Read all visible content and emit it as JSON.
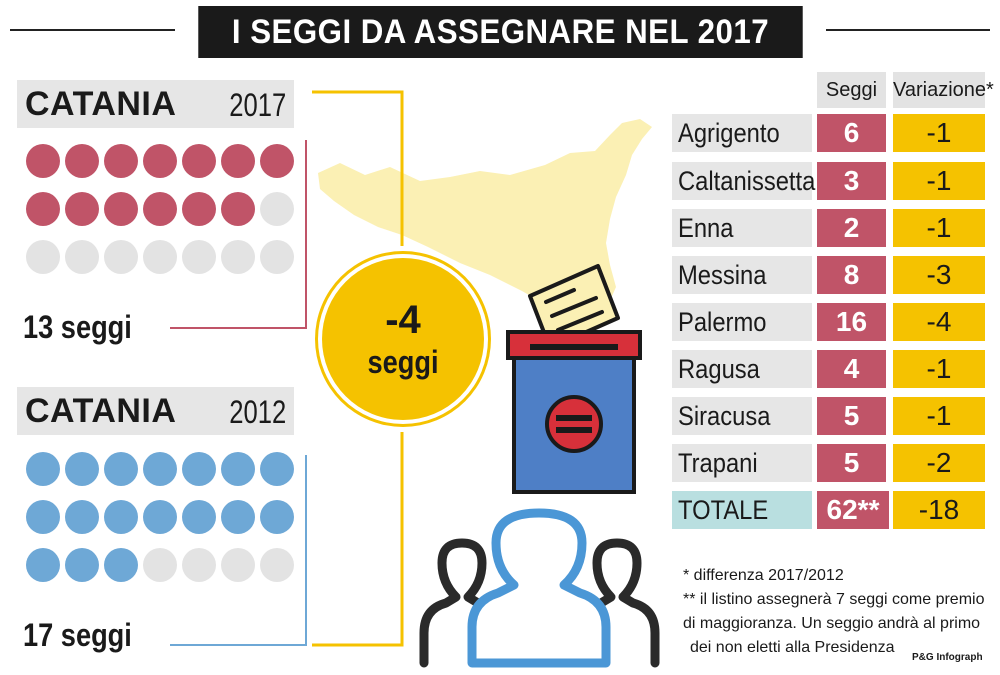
{
  "title": "I SEGGI DA ASSEGNARE NEL 2017",
  "catania_2017": {
    "name": "CATANIA",
    "year": "2017",
    "label": "13 seggi",
    "filled": 13,
    "total": 21
  },
  "catania_2012": {
    "name": "CATANIA",
    "year": "2012",
    "label": "17 seggi",
    "filled": 17,
    "total": 21
  },
  "difference": {
    "value": "-4",
    "label": "seggi"
  },
  "table": {
    "headers": {
      "seggi": "Seggi",
      "variazione": "Variazione*"
    },
    "rows": [
      {
        "name": "Agrigento",
        "seggi": "6",
        "variazione": "-1"
      },
      {
        "name": "Caltanissetta",
        "seggi": "3",
        "variazione": "-1"
      },
      {
        "name": "Enna",
        "seggi": "2",
        "variazione": "-1"
      },
      {
        "name": "Messina",
        "seggi": "8",
        "variazione": "-3"
      },
      {
        "name": "Palermo",
        "seggi": "16",
        "variazione": "-4"
      },
      {
        "name": "Ragusa",
        "seggi": "4",
        "variazione": "-1"
      },
      {
        "name": "Siracusa",
        "seggi": "5",
        "variazione": "-1"
      },
      {
        "name": "Trapani",
        "seggi": "5",
        "variazione": "-2"
      }
    ],
    "total": {
      "name": "TOTALE",
      "seggi": "62**",
      "variazione": "-18"
    }
  },
  "notes": {
    "note1": "* differenza 2017/2012",
    "note2": "** il listino assegnerà 7 seggi come premio",
    "note3": "di maggioranza. Un seggio andrà al primo",
    "note4": "dei non eletti alla Presidenza"
  },
  "credit": "P&G Infograph",
  "colors": {
    "red": "#c05468",
    "blue": "#6ea8d6",
    "yellow": "#f5c200",
    "gray": "#e3e3e3",
    "map": "#fbf0b4"
  },
  "icons": [
    "sicily-map",
    "ballot-box-icon",
    "ballot-paper-icon",
    "people-icon"
  ]
}
